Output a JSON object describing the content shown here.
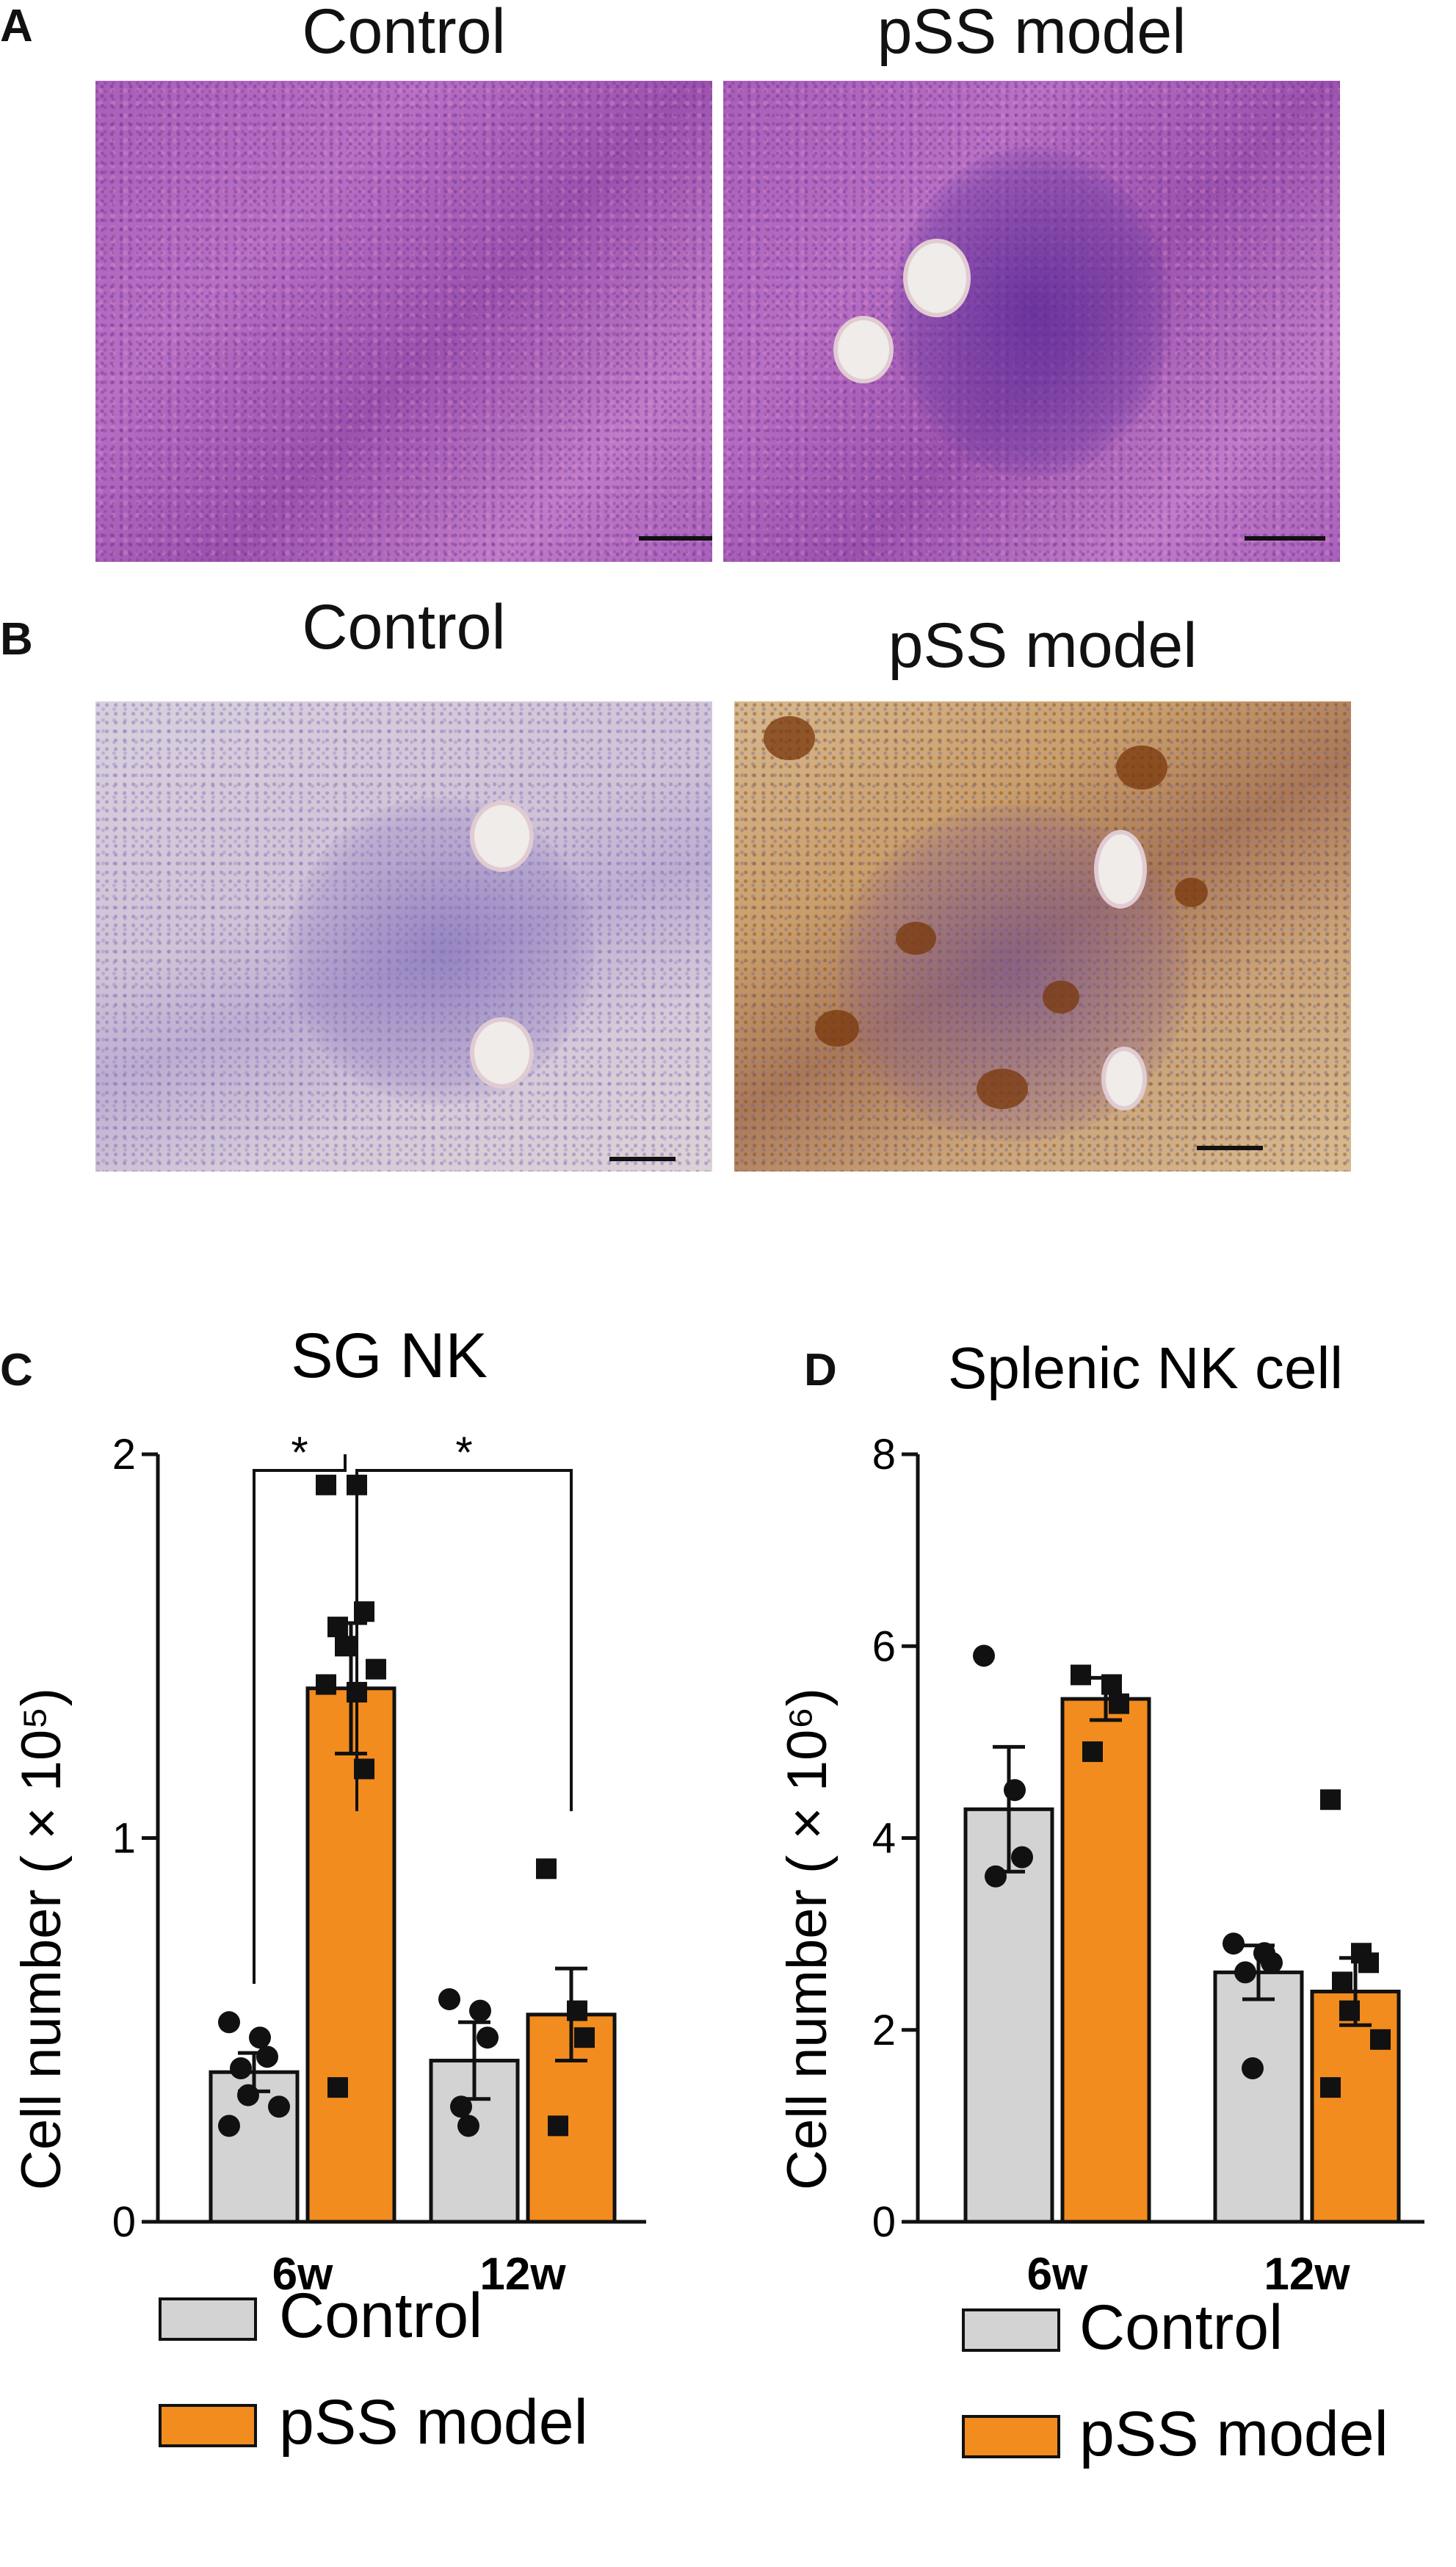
{
  "panels": {
    "A": {
      "letter": "A",
      "left_title": "Control",
      "right_title": "pSS model"
    },
    "B": {
      "letter": "B",
      "left_title": "Control",
      "right_title": "pSS model"
    },
    "C": {
      "letter": "C"
    },
    "D": {
      "letter": "D"
    }
  },
  "colors": {
    "control": "#d3d3d3",
    "pss": "#f28c1e",
    "he_stain": "#a85fb8",
    "ihc_brown": "#8a4a14"
  },
  "chart_data": [
    {
      "type": "bar",
      "title": "SG NK",
      "xlabel": "",
      "ylabel": "Cell number ( × 10⁵)",
      "ylim": [
        0,
        2
      ],
      "yticks": [
        "0",
        "1",
        "2"
      ],
      "categories": [
        "6w",
        "12w"
      ],
      "series": [
        {
          "name": "Control",
          "values": [
            0.39,
            0.42
          ],
          "sem": [
            0.05,
            0.1
          ],
          "points": [
            [
              0.52,
              0.48,
              0.43,
              0.4,
              0.33,
              0.3,
              0.25
            ],
            [
              0.58,
              0.55,
              0.48,
              0.3,
              0.25
            ]
          ]
        },
        {
          "name": "pSS model",
          "values": [
            1.39,
            0.54
          ],
          "sem": [
            0.17,
            0.12
          ],
          "points": [
            [
              1.92,
              1.92,
              1.59,
              1.55,
              1.5,
              1.44,
              1.4,
              1.38,
              1.18,
              0.35
            ],
            [
              0.92,
              0.55,
              0.48,
              0.25
            ]
          ]
        }
      ],
      "significance": [
        {
          "label": "*",
          "from": "6w Control",
          "to": "6w pSS model"
        },
        {
          "label": "*",
          "from": "6w pSS model",
          "to": "12w pSS model"
        }
      ],
      "legend": {
        "position": "bottom",
        "entries": [
          "Control",
          "pSS model"
        ]
      }
    },
    {
      "type": "bar",
      "title": "Splenic NK cell",
      "xlabel": "",
      "ylabel": "Cell number ( × 10⁶)",
      "ylim": [
        0,
        8
      ],
      "yticks": [
        "0",
        "2",
        "4",
        "6",
        "8"
      ],
      "categories": [
        "6w",
        "12w"
      ],
      "series": [
        {
          "name": "Control",
          "values": [
            4.3,
            2.6
          ],
          "sem": [
            0.65,
            0.28
          ],
          "points": [
            [
              5.9,
              4.5,
              3.8,
              3.6
            ],
            [
              2.9,
              2.8,
              2.7,
              2.6,
              1.6
            ]
          ]
        },
        {
          "name": "pSS model",
          "values": [
            5.45,
            2.4
          ],
          "sem": [
            0.22,
            0.35
          ],
          "points": [
            [
              5.7,
              5.6,
              5.4,
              4.9
            ],
            [
              4.4,
              2.8,
              2.7,
              2.5,
              2.2,
              1.9,
              1.4
            ]
          ]
        }
      ],
      "significance": [],
      "legend": {
        "position": "bottom",
        "entries": [
          "Control",
          "pSS model"
        ]
      }
    }
  ]
}
